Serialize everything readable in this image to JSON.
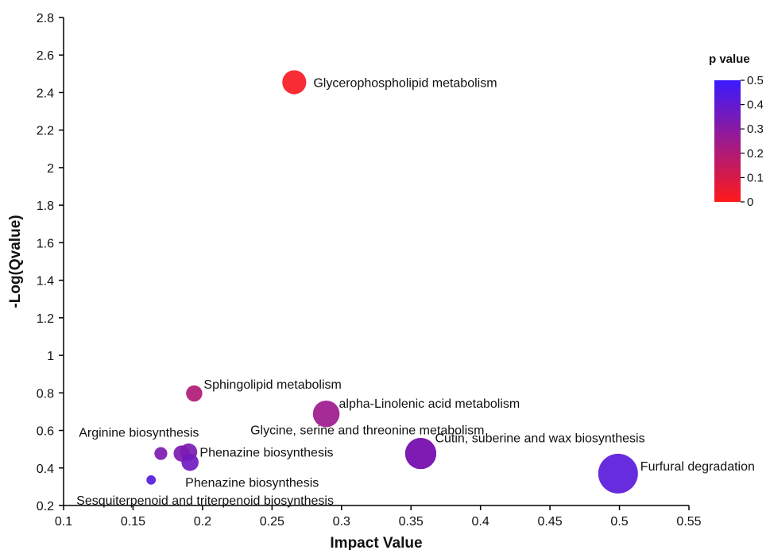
{
  "chart_data": {
    "type": "scatter",
    "xlabel": "Impact Value",
    "ylabel": "-Log(Qvalue)",
    "xlim": [
      0.1,
      0.55
    ],
    "ylim": [
      0.2,
      2.8
    ],
    "x_ticks": [
      0.1,
      0.15,
      0.2,
      0.25,
      0.3,
      0.35,
      0.4,
      0.45,
      0.5,
      0.55
    ],
    "x_tick_labels": [
      "0.1",
      "0.15",
      "0.2",
      "0.25",
      "0.3",
      "0.35",
      "0.4",
      "0.45",
      "0.5",
      "0.55"
    ],
    "y_ticks": [
      0.2,
      0.4,
      0.6,
      0.8,
      1.0,
      1.2,
      1.4,
      1.6,
      1.8,
      2.0,
      2.2,
      2.4,
      2.6,
      2.8
    ],
    "y_tick_labels": [
      "0.2",
      "0.4",
      "0.6",
      "0.8",
      "1",
      "1.2",
      "1.4",
      "1.6",
      "1.8",
      "2",
      "2.2",
      "2.4",
      "2.6",
      "2.8"
    ],
    "grid": false,
    "color_legend": {
      "title": "p value",
      "placement": "top-right",
      "min": 0,
      "max": 0.5,
      "ticks": [
        0,
        0.1,
        0.2,
        0.3,
        0.4,
        0.5
      ],
      "tick_labels": [
        "0",
        "0.1",
        "0.2",
        "0.3",
        "0.4",
        "0.5"
      ],
      "color_low": "#ff1a1a",
      "color_high": "#3a1aff"
    },
    "points": [
      {
        "label": "Glycerophospholipid metabolism",
        "x": 0.266,
        "y": 2.455,
        "p": 0.02,
        "size": 0.17
      },
      {
        "label": "Sphingolipid metabolism",
        "x": 0.194,
        "y": 0.797,
        "p": 0.2,
        "size": 0.06
      },
      {
        "label": "alpha-Linolenic acid metabolism",
        "x": 0.289,
        "y": 0.688,
        "p": 0.25,
        "size": 0.22
      },
      {
        "label": "Glycine, serine and threonine metabolism",
        "x": 0.357,
        "y": 0.477,
        "p": 0.33,
        "size": 0.32
      },
      {
        "label": "Cutin, suberine and wax biosynthesis",
        "x": 0.357,
        "y": 0.477,
        "p": 0.33,
        "size": 0.32
      },
      {
        "label": "Furfural degradation",
        "x": 0.499,
        "y": 0.37,
        "p": 0.42,
        "size": 0.56
      },
      {
        "label": "Arginine biosynthesis",
        "x": 0.17,
        "y": 0.477,
        "p": 0.33,
        "size": 0.03
      },
      {
        "label": "",
        "x": 0.185,
        "y": 0.477,
        "p": 0.33,
        "size": 0.06
      },
      {
        "label": "Phenazine biosynthesis",
        "x": 0.19,
        "y": 0.485,
        "p": 0.33,
        "size": 0.07
      },
      {
        "label": "Phenazine biosynthesis",
        "x": 0.191,
        "y": 0.43,
        "p": 0.36,
        "size": 0.07
      },
      {
        "label": "Sesquiterpenoid and triterpenoid biosynthesis",
        "x": 0.163,
        "y": 0.336,
        "p": 0.43,
        "size": 0.01
      }
    ]
  }
}
